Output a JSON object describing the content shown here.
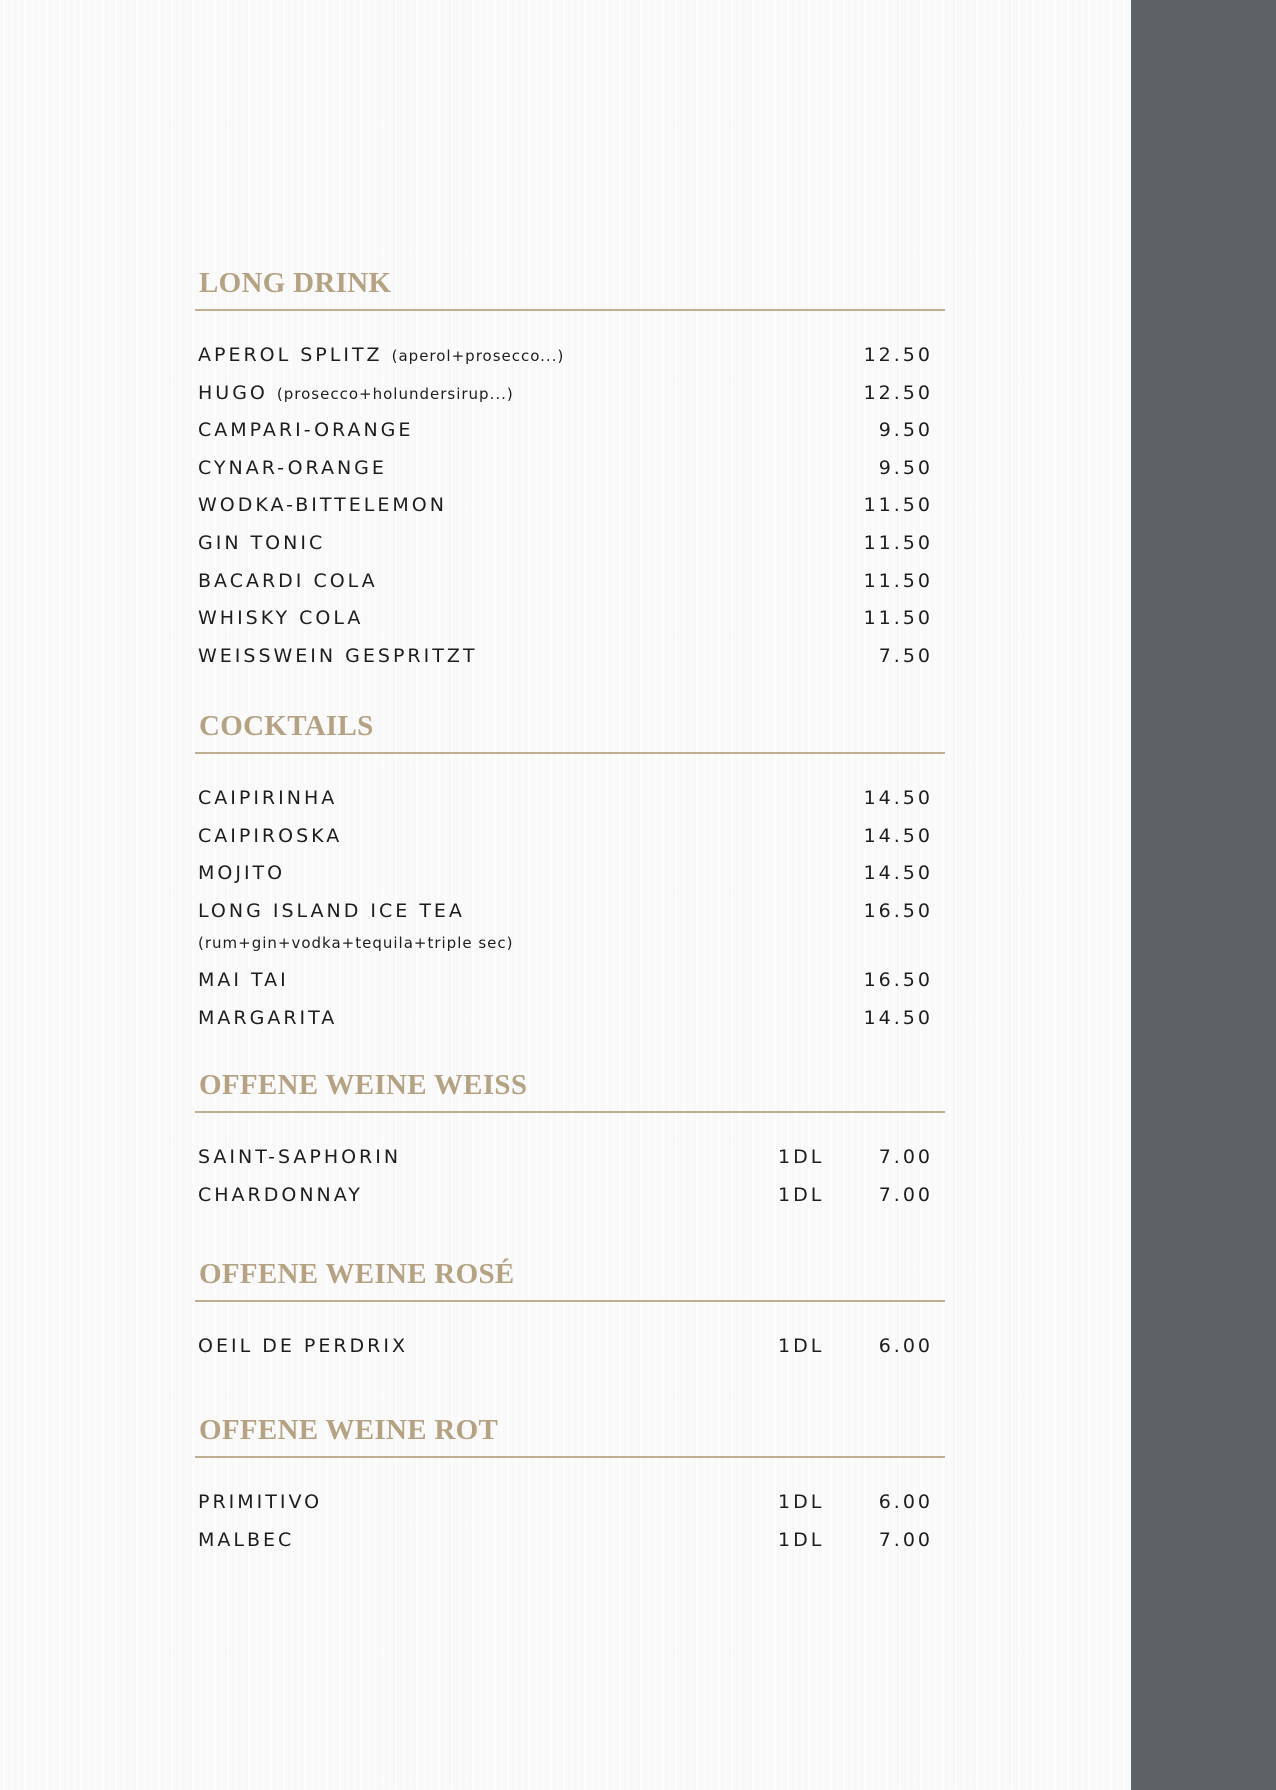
{
  "colors": {
    "heading": "#b5a283",
    "rule": "#bfae8f",
    "sidebar": "#5f6264",
    "text": "#1d1d1d"
  },
  "sections": [
    {
      "title": "LONG DRINK",
      "items": [
        {
          "name": "APEROL SPLITZ",
          "note": "(aperol+prosecco...)",
          "price": "12.50"
        },
        {
          "name": "HUGO",
          "note": "(prosecco+holundersirup...)",
          "price": "12.50"
        },
        {
          "name": "CAMPARI-ORANGE",
          "price": "9.50"
        },
        {
          "name": "CYNAR-ORANGE",
          "price": "9.50"
        },
        {
          "name": "WODKA-BITTELEMON",
          "price": "11.50"
        },
        {
          "name": "GIN TONIC",
          "price": "11.50"
        },
        {
          "name": "BACARDI COLA",
          "price": "11.50"
        },
        {
          "name": "WHISKY COLA",
          "price": "11.50"
        },
        {
          "name": "WEISSWEIN GESPRITZT",
          "price": "7.50"
        }
      ]
    },
    {
      "title": "COCKTAILS",
      "items": [
        {
          "name": "CAIPIRINHA",
          "price": "14.50"
        },
        {
          "name": "CAIPIROSKA",
          "price": "14.50"
        },
        {
          "name": "MOJITO",
          "price": "14.50"
        },
        {
          "name": "LONG ISLAND ICE TEA",
          "price": "16.50",
          "sub": "(rum+gin+vodka+tequila+triple sec)"
        },
        {
          "name": "MAI TAI",
          "price": "16.50"
        },
        {
          "name": "MARGARITA",
          "price": "14.50"
        }
      ]
    },
    {
      "title": "OFFENE WEINE WEISS",
      "items": [
        {
          "name": "SAINT-SAPHORIN",
          "qty": "1DL",
          "price": "7.00"
        },
        {
          "name": "CHARDONNAY",
          "qty": "1DL",
          "price": "7.00"
        }
      ]
    },
    {
      "title": "OFFENE WEINE ROSÉ",
      "items": [
        {
          "name": "OEIL DE PERDRIX",
          "qty": "1DL",
          "price": "6.00"
        }
      ]
    },
    {
      "title": "OFFENE WEINE ROT",
      "items": [
        {
          "name": "PRIMITIVO",
          "qty": "1DL",
          "price": "6.00"
        },
        {
          "name": "MALBEC",
          "qty": "1DL",
          "price": "7.00"
        }
      ]
    }
  ]
}
